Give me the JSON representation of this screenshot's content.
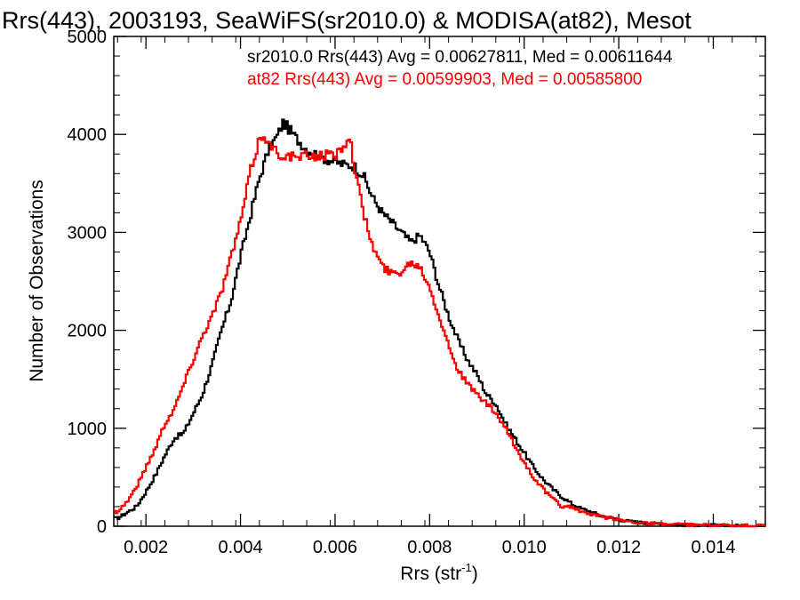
{
  "chart_data": {
    "type": "histogram",
    "title": "Rrs(443), 2003193, SeaWiFS(sr2010.0) & MODISA(at82), Mesot",
    "xlabel": "Rrs (str",
    "xlabel_superscript": "-1",
    "xlabel_close": ")",
    "ylabel": "Number of Observations",
    "xlim": [
      0.00132,
      0.0151
    ],
    "ylim": [
      0,
      5000
    ],
    "x_ticks": [
      0.002,
      0.004,
      0.006,
      0.008,
      0.01,
      0.012,
      0.014
    ],
    "x_tick_labels": [
      "0.002",
      "0.004",
      "0.006",
      "0.008",
      "0.010",
      "0.012",
      "0.014"
    ],
    "y_ticks": [
      0,
      1000,
      2000,
      3000,
      4000,
      5000
    ],
    "y_tick_labels": [
      "0",
      "1000",
      "2000",
      "3000",
      "4000",
      "5000"
    ],
    "grid": false,
    "legend_position": "top",
    "series": [
      {
        "name": "sr2010.0",
        "legend_text": "sr2010.0 Rrs(443) Avg = 0.00627811, Med = 0.00611644",
        "color": "#000000",
        "x": [
          0.0014,
          0.0018,
          0.002,
          0.0022,
          0.0024,
          0.0026,
          0.0028,
          0.003,
          0.0032,
          0.0034,
          0.0036,
          0.0038,
          0.004,
          0.0042,
          0.0044,
          0.0046,
          0.0048,
          0.0049,
          0.005,
          0.0052,
          0.0054,
          0.0056,
          0.0058,
          0.006,
          0.0062,
          0.0064,
          0.0066,
          0.0068,
          0.007,
          0.0072,
          0.0074,
          0.0076,
          0.0078,
          0.008,
          0.0082,
          0.0084,
          0.0086,
          0.0088,
          0.009,
          0.0092,
          0.0094,
          0.0096,
          0.0098,
          0.01,
          0.0102,
          0.0104,
          0.0106,
          0.0108,
          0.011,
          0.0112,
          0.0114,
          0.0116,
          0.0118,
          0.012,
          0.0122,
          0.0124,
          0.0126,
          0.0128,
          0.013,
          0.0132,
          0.0136,
          0.014,
          0.0144,
          0.0148,
          0.0151
        ],
        "y": [
          80,
          200,
          350,
          520,
          720,
          900,
          950,
          1150,
          1350,
          1650,
          2000,
          2300,
          2750,
          3150,
          3550,
          3850,
          4000,
          4120,
          4070,
          3950,
          3850,
          3800,
          3750,
          3720,
          3690,
          3680,
          3580,
          3350,
          3200,
          3100,
          3000,
          2900,
          2970,
          2800,
          2450,
          2150,
          1900,
          1700,
          1550,
          1350,
          1250,
          1050,
          900,
          750,
          600,
          480,
          380,
          300,
          230,
          180,
          150,
          110,
          90,
          70,
          50,
          40,
          30,
          25,
          20,
          15,
          10,
          8,
          5,
          3,
          2
        ]
      },
      {
        "name": "at82",
        "legend_text": "at82 Rrs(443) Avg = 0.00599903, Med = 0.00585800",
        "color": "#ff0000",
        "x": [
          0.0014,
          0.0016,
          0.0018,
          0.002,
          0.0022,
          0.0024,
          0.0026,
          0.0028,
          0.003,
          0.0032,
          0.0034,
          0.0036,
          0.0038,
          0.004,
          0.0042,
          0.0044,
          0.0045,
          0.0046,
          0.0048,
          0.005,
          0.0052,
          0.0054,
          0.0056,
          0.0058,
          0.006,
          0.0062,
          0.0063,
          0.0064,
          0.0066,
          0.0068,
          0.007,
          0.0072,
          0.0074,
          0.0076,
          0.0078,
          0.008,
          0.0082,
          0.0084,
          0.0086,
          0.0088,
          0.009,
          0.0092,
          0.0094,
          0.0096,
          0.0098,
          0.01,
          0.0102,
          0.0104,
          0.0106,
          0.0108,
          0.011,
          0.0112,
          0.0114,
          0.0116,
          0.0118,
          0.012,
          0.0122,
          0.0124,
          0.0126,
          0.0128,
          0.013,
          0.0134,
          0.0138,
          0.0142,
          0.0146,
          0.0151
        ],
        "y": [
          150,
          250,
          400,
          600,
          800,
          1050,
          1200,
          1450,
          1700,
          1950,
          2150,
          2400,
          2750,
          3100,
          3600,
          3950,
          4000,
          3900,
          3800,
          3780,
          3760,
          3780,
          3780,
          3790,
          3780,
          3900,
          4000,
          3700,
          3200,
          2850,
          2650,
          2580,
          2600,
          2700,
          2650,
          2450,
          2150,
          1850,
          1600,
          1450,
          1350,
          1250,
          1150,
          1000,
          820,
          650,
          500,
          380,
          280,
          200,
          200,
          150,
          120,
          100,
          80,
          70,
          50,
          40,
          30,
          25,
          20,
          15,
          10,
          8,
          5,
          3
        ]
      }
    ]
  }
}
